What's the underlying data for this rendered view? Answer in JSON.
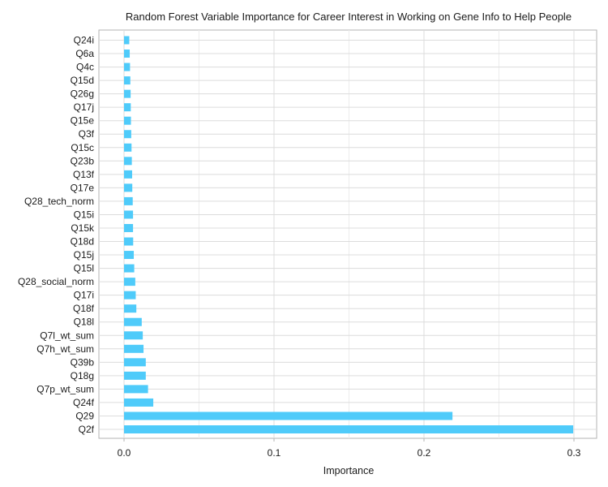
{
  "chart_data": {
    "type": "bar",
    "orientation": "horizontal",
    "title": "Random Forest Variable Importance for Career Interest in Working on Gene Info to Help People",
    "xlabel": "Importance",
    "ylabel": "",
    "xlim": [
      0,
      0.3
    ],
    "xticks": [
      "0.0",
      "0.1",
      "0.2",
      "0.3"
    ],
    "grid": true,
    "bar_color": "#4fcbfa",
    "categories": [
      "Q24i",
      "Q6a",
      "Q4c",
      "Q15d",
      "Q26g",
      "Q17j",
      "Q15e",
      "Q3f",
      "Q15c",
      "Q23b",
      "Q13f",
      "Q17e",
      "Q28_tech_norm",
      "Q15i",
      "Q15k",
      "Q18d",
      "Q15j",
      "Q15l",
      "Q28_social_norm",
      "Q17i",
      "Q18f",
      "Q18l",
      "Q7l_wt_sum",
      "Q7h_wt_sum",
      "Q39b",
      "Q18g",
      "Q7p_wt_sum",
      "Q24f",
      "Q29",
      "Q2f"
    ],
    "values": [
      0.0035,
      0.0038,
      0.004,
      0.0042,
      0.0044,
      0.0045,
      0.0046,
      0.0048,
      0.005,
      0.0052,
      0.0054,
      0.0055,
      0.0058,
      0.006,
      0.006,
      0.0061,
      0.0065,
      0.0068,
      0.0075,
      0.0078,
      0.0082,
      0.0118,
      0.0125,
      0.013,
      0.0145,
      0.0145,
      0.016,
      0.0195,
      0.219,
      0.2995
    ]
  }
}
